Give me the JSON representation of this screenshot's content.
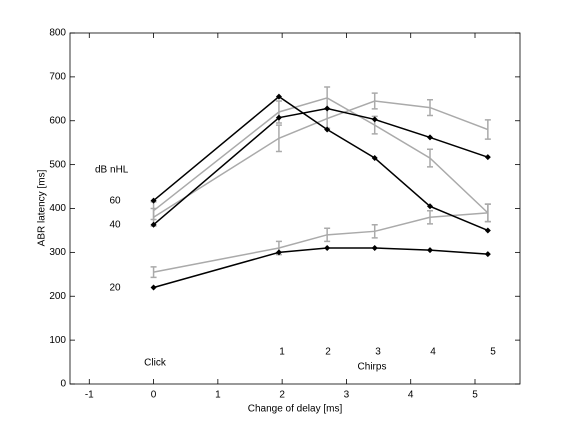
{
  "chart_data": {
    "type": "line",
    "xlabel": "Change of delay [ms]",
    "ylabel": "ABR latency [ms]",
    "x": [
      0,
      1.95,
      2.7,
      3.44,
      4.3,
      5.2
    ],
    "xlim": [
      -1.3,
      5.7
    ],
    "xticks": [
      -1,
      0,
      1,
      2,
      3,
      4,
      5
    ],
    "ylim": [
      0,
      800
    ],
    "yticks": [
      0,
      100,
      200,
      300,
      400,
      500,
      600,
      700,
      800
    ],
    "series": [
      {
        "color": "#aaaaaa",
        "values": [
          395,
          620,
          652,
          590,
          515,
          390
        ],
        "errors": [
          20,
          25,
          25,
          20,
          20,
          20
        ]
      },
      {
        "color": "#aaaaaa",
        "values": [
          380,
          560,
          605,
          645,
          630,
          580
        ],
        "errors": [
          20,
          30,
          22,
          18,
          18,
          22
        ]
      },
      {
        "color": "#aaaaaa",
        "values": [
          255,
          310,
          340,
          348,
          380,
          390
        ],
        "errors": [
          12,
          15,
          15,
          15,
          15,
          20
        ]
      },
      {
        "color": "#000000",
        "values": [
          418,
          655,
          580,
          515,
          405,
          350
        ]
      },
      {
        "color": "#000000",
        "values": [
          363,
          607,
          628,
          603,
          562,
          517
        ]
      },
      {
        "color": "#000000",
        "values": [
          220,
          300,
          310,
          310,
          305,
          296
        ]
      }
    ],
    "annotations": [
      "dB nHL",
      "60",
      "40",
      "20",
      "Click",
      "1",
      "2",
      "3",
      "4",
      "5",
      "Chirps"
    ]
  }
}
